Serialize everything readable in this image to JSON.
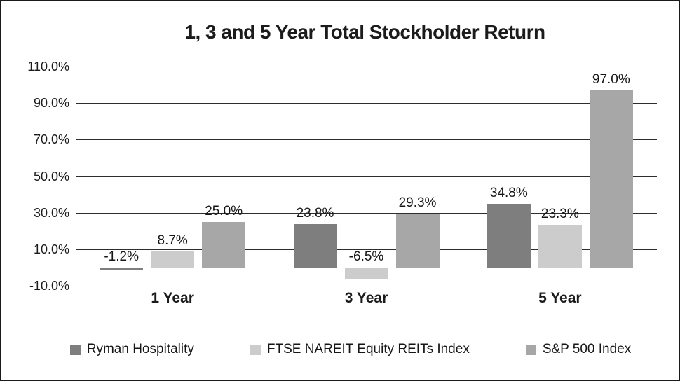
{
  "frame": {
    "background": "#ffffff",
    "border_color": "#1a1a1a",
    "gridline_color": "#2d2d2d"
  },
  "chart_data": {
    "type": "bar",
    "title": "1, 3 and 5 Year Total Stockholder Return",
    "categories": [
      "1 Year",
      "3 Year",
      "5 Year"
    ],
    "series": [
      {
        "name": "Ryman Hospitality",
        "color": "#7e7e7e",
        "values": [
          -1.2,
          23.8,
          34.8
        ],
        "labels": [
          "-1.2%",
          "23.8%",
          "34.8%"
        ]
      },
      {
        "name": "FTSE NAREIT Equity REITs Index",
        "color": "#cccccc",
        "values": [
          8.7,
          -6.5,
          23.3
        ],
        "labels": [
          "8.7%",
          "-6.5%",
          "23.3%"
        ]
      },
      {
        "name": "S&P 500 Index",
        "color": "#a7a7a7",
        "values": [
          25.0,
          29.3,
          97.0
        ],
        "labels": [
          "25.0%",
          "29.3%",
          "97.0%"
        ]
      }
    ],
    "y_axis": {
      "min": -10,
      "max": 110,
      "ticks": [
        {
          "value": 110,
          "label": "110.0%"
        },
        {
          "value": 90,
          "label": "90.0%"
        },
        {
          "value": 70,
          "label": "70.0%"
        },
        {
          "value": 50,
          "label": "50.0%"
        },
        {
          "value": 30,
          "label": "30.0%"
        },
        {
          "value": 10,
          "label": "10.0%"
        },
        {
          "value": -10,
          "label": "-10.0%"
        }
      ]
    },
    "grid": true,
    "legend_position": "bottom"
  }
}
